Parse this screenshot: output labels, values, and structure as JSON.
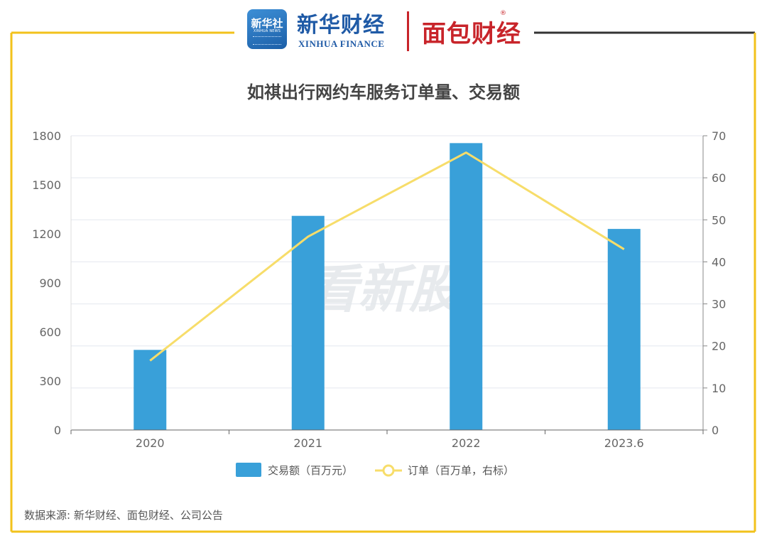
{
  "brand": {
    "xinhua_logo_cn": "新华社",
    "xinhua_logo_en": "XINHUA NEWS",
    "xinhua_finance_cn": "新华财经",
    "xinhua_finance_en": "XINHUA FINANCE",
    "mianbao_cn": "面包财经"
  },
  "watermark": "看新股",
  "source": "数据来源: 新华财经、面包财经、公司公告",
  "colors": {
    "bar": "#39a0d9",
    "line": "#f7dd6a",
    "frame_gold": "#f2c21b",
    "frame_dark": "#333333",
    "axis_text": "#666666",
    "title": "#444444"
  },
  "chart_data": {
    "type": "bar",
    "title": "如祺出行网约车服务订单量、交易额",
    "categories": [
      "2020",
      "2021",
      "2022",
      "2023.6"
    ],
    "series": [
      {
        "name": "交易额（百万元）",
        "type": "bar",
        "axis": "left",
        "values": [
          490,
          1310,
          1755,
          1230
        ]
      },
      {
        "name": "订单（百万单，右标）",
        "type": "line",
        "axis": "right",
        "values": [
          16.5,
          46,
          66,
          43
        ]
      }
    ],
    "left_axis": {
      "min": 0,
      "max": 1800,
      "ticks": [
        "0",
        "300",
        "600",
        "900",
        "1200",
        "1500",
        "1800"
      ]
    },
    "right_axis": {
      "min": 0,
      "max": 70,
      "ticks": [
        "0",
        "10",
        "20",
        "30",
        "40",
        "50",
        "60",
        "70"
      ]
    },
    "xlabel": "",
    "ylabel": "",
    "grid": true,
    "legend": "bottom-center"
  }
}
